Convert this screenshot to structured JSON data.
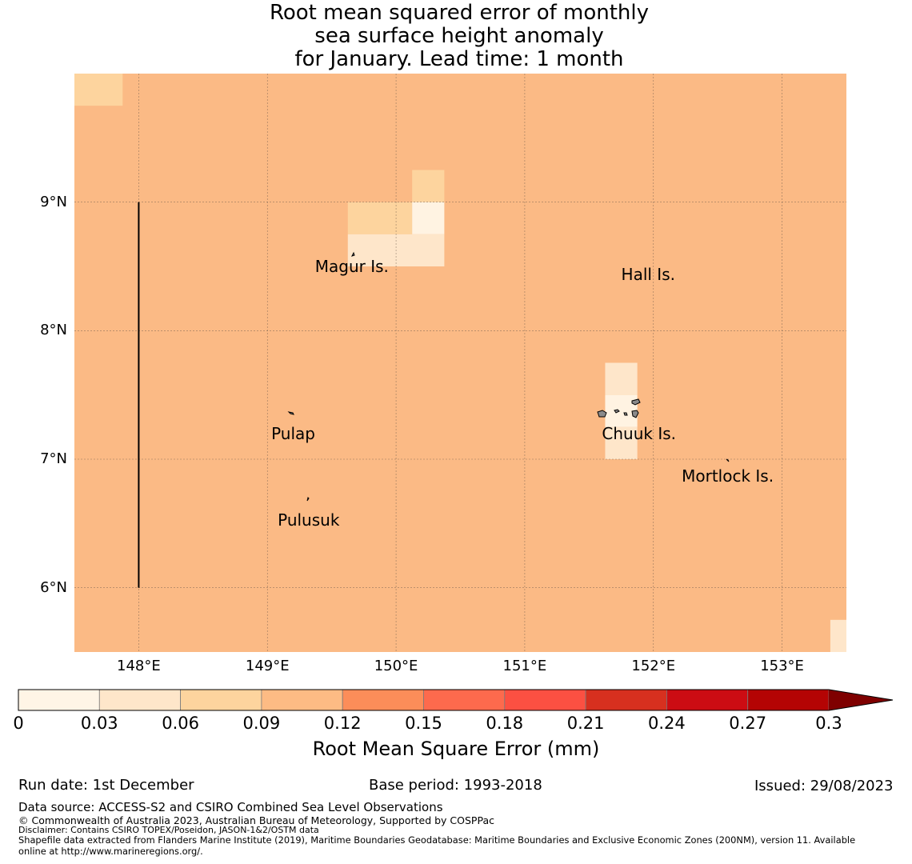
{
  "title": {
    "line1": "Root mean squared error of monthly",
    "line2": "sea surface height anomaly",
    "line3": "for January. Lead time: 1 month"
  },
  "map": {
    "background_color": "#fbba85",
    "lon_range": [
      147.5,
      153.5
    ],
    "lat_range": [
      5.5,
      10.0
    ],
    "lat_labels": [
      {
        "lat": 9,
        "text": "9°N"
      },
      {
        "lat": 8,
        "text": "8°N"
      },
      {
        "lat": 7,
        "text": "7°N"
      },
      {
        "lat": 6,
        "text": "6°N"
      }
    ],
    "lon_labels": [
      {
        "lon": 148,
        "text": "148°E"
      },
      {
        "lon": 149,
        "text": "149°E"
      },
      {
        "lon": 150,
        "text": "150°E"
      },
      {
        "lon": 151,
        "text": "151°E"
      },
      {
        "lon": 152,
        "text": "152°E"
      },
      {
        "lon": 153,
        "text": "153°E"
      }
    ],
    "cells": [
      {
        "lon0": 147.5,
        "lon1": 147.875,
        "lat0": 9.75,
        "lat1": 10.0,
        "color": "#fdd49e"
      },
      {
        "lon0": 149.625,
        "lon1": 150.125,
        "lat0": 8.75,
        "lat1": 9.0,
        "color": "#fdd49e"
      },
      {
        "lon0": 150.125,
        "lon1": 150.375,
        "lat0": 9.0,
        "lat1": 9.25,
        "color": "#fdd49e"
      },
      {
        "lon0": 150.125,
        "lon1": 150.375,
        "lat0": 8.75,
        "lat1": 9.0,
        "color": "#fff3e2"
      },
      {
        "lon0": 149.625,
        "lon1": 150.375,
        "lat0": 8.5,
        "lat1": 8.75,
        "color": "#fee6ca"
      },
      {
        "lon0": 151.625,
        "lon1": 151.875,
        "lat0": 7.5,
        "lat1": 7.75,
        "color": "#fee6ca"
      },
      {
        "lon0": 151.625,
        "lon1": 151.875,
        "lat0": 7.25,
        "lat1": 7.5,
        "color": "#fff3e2"
      },
      {
        "lon0": 151.625,
        "lon1": 151.875,
        "lat0": 7.0,
        "lat1": 7.25,
        "color": "#fee6ca"
      },
      {
        "lon0": 153.375,
        "lon1": 153.5,
        "lat0": 5.5,
        "lat1": 5.75,
        "color": "#fee6ca"
      }
    ],
    "boundary_line": {
      "lon": 148.0,
      "lat0": 6.0,
      "lat1": 9.0
    },
    "places": [
      {
        "name": "Magur Is.",
        "lon": 149.37,
        "lat": 8.5
      },
      {
        "name": "Hall Is.",
        "lon": 151.75,
        "lat": 8.44
      },
      {
        "name": "Pulap",
        "lon": 149.03,
        "lat": 7.2
      },
      {
        "name": "Chuuk Is.",
        "lon": 151.6,
        "lat": 7.2
      },
      {
        "name": "Mortlock Is.",
        "lon": 152.22,
        "lat": 6.87
      },
      {
        "name": "Pulusuk",
        "lon": 149.08,
        "lat": 6.53
      }
    ]
  },
  "colorbar": {
    "colors": [
      "#fff5e6",
      "#fee6ca",
      "#fdd49e",
      "#fdbb84",
      "#fc8d59",
      "#fd6a4d",
      "#fc5042",
      "#d7301f",
      "#cc0c13",
      "#b40404"
    ],
    "extend_color": "#7f0000",
    "tick_labels": [
      "0",
      "0.03",
      "0.06",
      "0.09",
      "0.12",
      "0.15",
      "0.18",
      "0.21",
      "0.24",
      "0.27",
      "0.3"
    ],
    "label": "Root Mean Square Error (mm)"
  },
  "footer": {
    "run_date": "Run date: 1st December",
    "base_period": "Base period: 1993-2018",
    "issued": "Issued: 29/08/2023",
    "data_source": "Data source: ACCESS-S2 and CSIRO Combined Sea Level Observations",
    "copyright": "© Commonwealth of Australia 2023, Australian Bureau of Meteorology, Supported by COSPPac",
    "disclaimer": "Disclaimer: Contains CSIRO TOPEX/Poseidon, JASON-1&2/OSTM data",
    "shapefile_line1": "Shapefile data extracted from Flanders Marine Institute (2019), Maritime Boundaries Geodatabase: Maritime Boundaries and Exclusive Economic Zones (200NM), version 11. Available",
    "shapefile_line2": "online at http://www.marineregions.org/."
  }
}
